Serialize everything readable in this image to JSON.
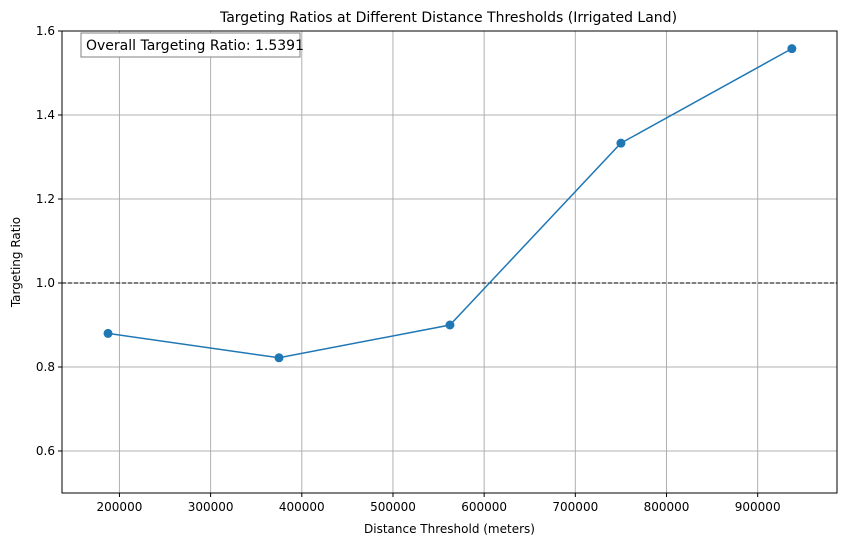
{
  "chart_data": {
    "type": "line",
    "title": "Targeting Ratios at Different Distance Thresholds (Irrigated Land)",
    "xlabel": "Distance Threshold (meters)",
    "ylabel": "Targeting Ratio",
    "xlim": [
      137000,
      987000
    ],
    "ylim": [
      0.5,
      1.6
    ],
    "x_ticks": [
      200000,
      300000,
      400000,
      500000,
      600000,
      700000,
      800000,
      900000
    ],
    "x_tick_labels": [
      "200000",
      "300000",
      "400000",
      "500000",
      "600000",
      "700000",
      "800000",
      "900000"
    ],
    "y_ticks": [
      0.6,
      0.8,
      1.0,
      1.2,
      1.4,
      1.6
    ],
    "y_tick_labels": [
      "0.6",
      "0.8",
      "1.0",
      "1.2",
      "1.4",
      "1.6"
    ],
    "grid": true,
    "series": [
      {
        "x": [
          187500,
          375000,
          562500,
          750000,
          937500
        ],
        "y": [
          0.88,
          0.822,
          0.9,
          1.333,
          1.558
        ],
        "color": "#1f77b4",
        "marker": "circle"
      }
    ],
    "reference_line": {
      "y": 1.0,
      "style": "dashed",
      "color": "#000000"
    },
    "annotation": {
      "text": "Overall Targeting Ratio: 1.5391",
      "placement": "top-left"
    }
  }
}
